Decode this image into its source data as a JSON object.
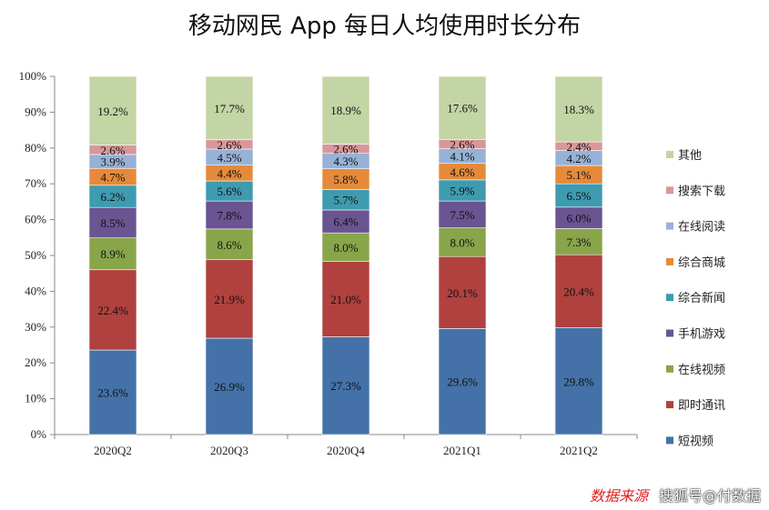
{
  "title": "移动网民 App 每日人均使用时长分布",
  "chart_data": {
    "type": "bar",
    "stacked": true,
    "categories": [
      "2020Q2",
      "2020Q3",
      "2020Q4",
      "2021Q1",
      "2021Q2"
    ],
    "yticks": [
      "0%",
      "10%",
      "20%",
      "30%",
      "40%",
      "50%",
      "60%",
      "70%",
      "80%",
      "90%",
      "100%"
    ],
    "ylim": [
      0,
      100
    ],
    "legend_position": "right",
    "series": [
      {
        "name": "短视频",
        "color": "#4472a8",
        "values": [
          23.6,
          26.9,
          27.3,
          29.6,
          29.8
        ],
        "labels": [
          "23.6%",
          "26.9%",
          "27.3%",
          "29.6%",
          "29.8%"
        ]
      },
      {
        "name": "即时通讯",
        "color": "#b0413e",
        "values": [
          22.4,
          21.9,
          21.0,
          20.1,
          20.4
        ],
        "labels": [
          "22.4%",
          "21.9%",
          "21.0%",
          "20.1%",
          "20.4%"
        ]
      },
      {
        "name": "在线视频",
        "color": "#88a54a",
        "values": [
          8.9,
          8.6,
          8.0,
          8.0,
          7.3
        ],
        "labels": [
          "8.9%",
          "8.6%",
          "8.0%",
          "8.0%",
          "7.3%"
        ]
      },
      {
        "name": "手机游戏",
        "color": "#6a5491",
        "values": [
          8.5,
          7.8,
          6.4,
          7.5,
          6.0
        ],
        "labels": [
          "8.5%",
          "7.8%",
          "6.4%",
          "7.5%",
          "6.0%"
        ]
      },
      {
        "name": "综合新闻",
        "color": "#3e9bb0",
        "values": [
          6.2,
          5.6,
          5.7,
          5.9,
          6.5
        ],
        "labels": [
          "6.2%",
          "5.6%",
          "5.7%",
          "5.9%",
          "6.5%"
        ]
      },
      {
        "name": "综合商城",
        "color": "#e58a3a",
        "values": [
          4.7,
          4.4,
          5.8,
          4.6,
          5.1
        ],
        "labels": [
          "4.7%",
          "4.4%",
          "5.8%",
          "4.6%",
          "5.1%"
        ]
      },
      {
        "name": "在线阅读",
        "color": "#97b2d6",
        "values": [
          3.9,
          4.5,
          4.3,
          4.1,
          4.2
        ],
        "labels": [
          "3.9%",
          "4.5%",
          "4.3%",
          "4.1%",
          "4.2%"
        ]
      },
      {
        "name": "搜索下载",
        "color": "#d9979a",
        "values": [
          2.6,
          2.6,
          2.6,
          2.6,
          2.4
        ],
        "labels": [
          "2.6%",
          "2.6%",
          "2.6%",
          "2.6%",
          "2.4%"
        ]
      },
      {
        "name": "其他",
        "color": "#c3d5a4",
        "values": [
          19.2,
          17.7,
          18.9,
          17.6,
          18.3
        ],
        "labels": [
          "19.2%",
          "17.7%",
          "18.9%",
          "17.6%",
          "18.3%"
        ]
      }
    ]
  },
  "footer": {
    "source_note": "数据来源",
    "watermark": "搜狐号@付数据"
  }
}
